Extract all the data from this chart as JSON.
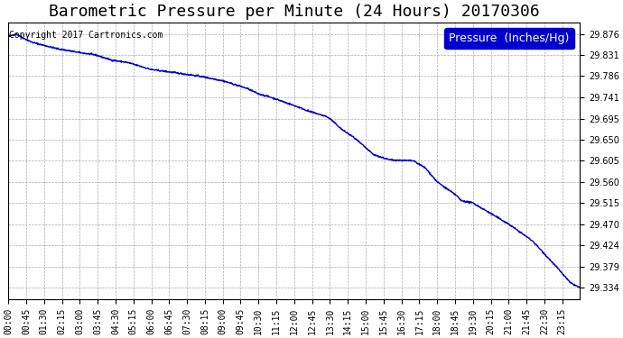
{
  "title": "Barometric Pressure per Minute (24 Hours) 20170306",
  "copyright_text": "Copyright 2017 Cartronics.com",
  "legend_label": "Pressure  (Inches/Hg)",
  "background_color": "#ffffff",
  "plot_bg_color": "#ffffff",
  "line_color": "#0000cc",
  "line_width": 1.0,
  "grid_color": "#aaaaaa",
  "grid_style": "--",
  "yticks": [
    29.876,
    29.831,
    29.786,
    29.741,
    29.695,
    29.65,
    29.605,
    29.56,
    29.515,
    29.47,
    29.424,
    29.379,
    29.334
  ],
  "ylim": [
    29.31,
    29.9
  ],
  "xtick_labels": [
    "00:00",
    "00:45",
    "01:30",
    "02:15",
    "03:00",
    "03:45",
    "04:30",
    "05:15",
    "06:00",
    "06:45",
    "07:30",
    "08:15",
    "09:00",
    "09:45",
    "10:30",
    "11:15",
    "12:00",
    "12:45",
    "13:30",
    "14:15",
    "15:00",
    "15:45",
    "16:30",
    "17:15",
    "18:00",
    "18:45",
    "19:30",
    "20:15",
    "21:00",
    "21:45",
    "22:30",
    "23:15"
  ],
  "key_times": [
    0,
    20,
    40,
    60,
    120,
    180,
    220,
    260,
    300,
    360,
    420,
    480,
    540,
    600,
    630,
    660,
    720,
    760,
    800,
    810,
    840,
    870,
    920,
    960,
    1020,
    1050,
    1080,
    1130,
    1140,
    1170,
    1200,
    1260,
    1320,
    1380,
    1415,
    1439
  ],
  "key_values": [
    29.87,
    29.876,
    29.866,
    29.858,
    29.845,
    29.836,
    29.831,
    29.82,
    29.815,
    29.8,
    29.793,
    29.786,
    29.776,
    29.76,
    29.748,
    29.741,
    29.723,
    29.71,
    29.7,
    29.695,
    29.672,
    29.655,
    29.618,
    29.607,
    29.605,
    29.59,
    29.56,
    29.53,
    29.52,
    29.515,
    29.5,
    29.47,
    29.434,
    29.379,
    29.345,
    29.334
  ],
  "title_fontsize": 13,
  "tick_fontsize": 7,
  "legend_fontsize": 9,
  "copyright_fontsize": 7
}
